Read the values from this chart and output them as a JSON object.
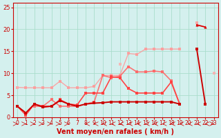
{
  "x": [
    0,
    1,
    2,
    3,
    4,
    5,
    6,
    7,
    8,
    9,
    10,
    11,
    12,
    13,
    14,
    15,
    16,
    17,
    18,
    19,
    20,
    21,
    22,
    23
  ],
  "series": [
    {
      "color": "#ff9999",
      "alpha": 0.85,
      "linewidth": 1.0,
      "marker": "s",
      "markersize": 2.5,
      "values": [
        6.8,
        6.7,
        6.7,
        6.7,
        6.7,
        8.2,
        6.7,
        6.7,
        6.7,
        7.0,
        9.5,
        9.5,
        9.5,
        14.5,
        14.3,
        15.5,
        15.5,
        15.5,
        15.5,
        15.5,
        null,
        21.5,
        null,
        null
      ]
    },
    {
      "color": "#ffaaaa",
      "alpha": 0.8,
      "linewidth": 1.0,
      "marker": "s",
      "markersize": 2.5,
      "values": [
        6.8,
        null,
        null,
        null,
        null,
        null,
        null,
        null,
        null,
        null,
        null,
        null,
        12.0,
        null,
        null,
        null,
        null,
        null,
        null,
        null,
        null,
        null,
        null,
        10.0
      ]
    },
    {
      "color": "#ff6666",
      "alpha": 0.9,
      "linewidth": 1.2,
      "marker": "s",
      "markersize": 2.5,
      "values": [
        null,
        null,
        2.5,
        2.5,
        4.0,
        2.5,
        2.5,
        2.5,
        3.0,
        3.5,
        9.5,
        9.0,
        9.3,
        11.5,
        10.3,
        10.3,
        10.5,
        10.3,
        8.3,
        3.0,
        null,
        15.5,
        null,
        null
      ]
    },
    {
      "color": "#ff4444",
      "alpha": 1.0,
      "linewidth": 1.2,
      "marker": "s",
      "markersize": 2.5,
      "values": [
        2.5,
        0.5,
        3.0,
        2.5,
        2.5,
        4.0,
        3.0,
        2.8,
        5.5,
        5.5,
        5.5,
        9.2,
        9.0,
        6.5,
        5.5,
        5.5,
        5.5,
        5.5,
        8.0,
        3.0,
        null,
        null,
        null,
        null
      ]
    },
    {
      "color": "#cc0000",
      "alpha": 1.0,
      "linewidth": 1.4,
      "marker": "s",
      "markersize": 2.5,
      "values": [
        2.5,
        1.0,
        3.0,
        2.3,
        2.5,
        3.8,
        3.0,
        2.5,
        3.0,
        3.2,
        3.3,
        3.5,
        3.5,
        3.5,
        3.5,
        3.5,
        3.5,
        3.5,
        3.5,
        3.0,
        null,
        15.5,
        3.0,
        null
      ]
    },
    {
      "color": "#dd0000",
      "alpha": 1.0,
      "linewidth": 1.3,
      "marker": "^",
      "markersize": 3.0,
      "values": [
        null,
        null,
        null,
        null,
        null,
        null,
        null,
        null,
        null,
        null,
        null,
        null,
        null,
        null,
        null,
        null,
        null,
        null,
        null,
        null,
        null,
        21.0,
        20.5,
        null
      ]
    }
  ],
  "xlabel": "Vent moyen/en rafales ( km/h )",
  "ylabel": "",
  "xlim": [
    -0.5,
    23.5
  ],
  "ylim": [
    0,
    26
  ],
  "yticks": [
    0,
    5,
    10,
    15,
    20,
    25
  ],
  "xticks": [
    0,
    1,
    2,
    3,
    4,
    5,
    6,
    7,
    8,
    9,
    10,
    11,
    12,
    13,
    14,
    15,
    16,
    17,
    18,
    19,
    20,
    21,
    22,
    23
  ],
  "bg_color": "#d4f0ee",
  "grid_color": "#aaddcc",
  "title_color": "#cc0000",
  "axis_color": "#cc0000",
  "tick_color": "#cc0000"
}
